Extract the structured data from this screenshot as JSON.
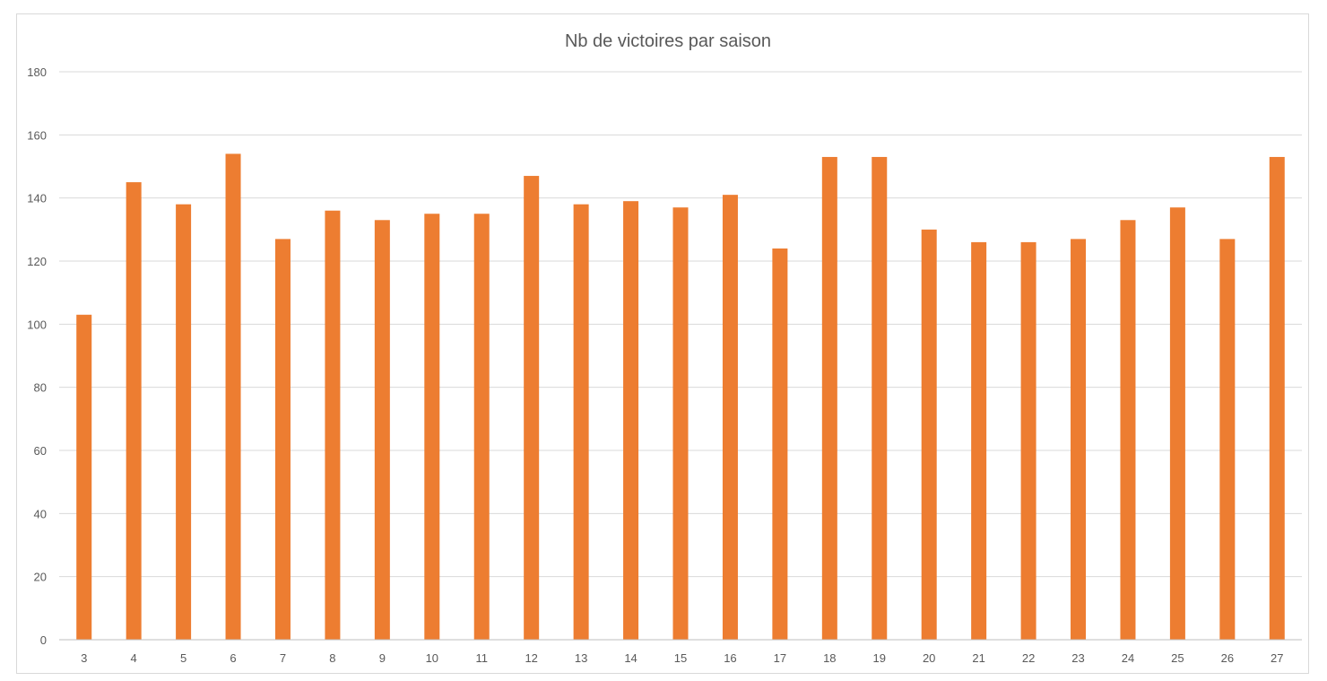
{
  "chart_data": {
    "type": "bar",
    "title": "Nb de victoires par saison",
    "xlabel": "",
    "ylabel": "",
    "categories": [
      "3",
      "4",
      "5",
      "6",
      "7",
      "8",
      "9",
      "10",
      "11",
      "12",
      "13",
      "14",
      "15",
      "16",
      "17",
      "18",
      "19",
      "20",
      "21",
      "22",
      "23",
      "24",
      "25",
      "26",
      "27"
    ],
    "values": [
      103,
      145,
      138,
      154,
      127,
      136,
      133,
      135,
      135,
      147,
      138,
      139,
      137,
      141,
      124,
      153,
      153,
      130,
      126,
      126,
      127,
      133,
      137,
      127,
      153
    ],
    "ylim": [
      0,
      180
    ],
    "yticks": [
      0,
      20,
      40,
      60,
      80,
      100,
      120,
      140,
      160,
      180
    ],
    "grid": true,
    "legend": "none",
    "bar_color": "#ED7D31"
  }
}
